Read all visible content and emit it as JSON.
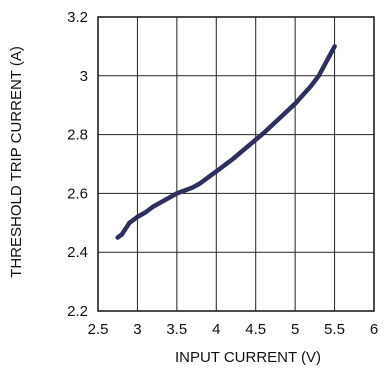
{
  "chart_data": {
    "type": "line",
    "title": "",
    "xlabel": "INPUT CURRENT (V)",
    "ylabel": "THRESHOLD TRIP CURRENT (A)",
    "xlim": [
      2.5,
      6.0
    ],
    "ylim": [
      2.2,
      3.2
    ],
    "x_ticks": [
      2.5,
      3,
      3.5,
      4,
      4.5,
      5,
      5.5,
      6
    ],
    "x_tick_labels": [
      "2.5",
      "3",
      "3.5",
      "4",
      "4.5",
      "5",
      "5.5",
      "6"
    ],
    "y_ticks": [
      2.2,
      2.4,
      2.6,
      2.8,
      3.0,
      3.2
    ],
    "y_tick_labels": [
      "2.2",
      "2.4",
      "2.6",
      "2.8",
      "3",
      "3.2"
    ],
    "grid": true,
    "legend": "none",
    "series": [
      {
        "color": "#2f2f5f",
        "x": [
          2.75,
          2.8,
          2.9,
          3.0,
          3.1,
          3.2,
          3.3,
          3.4,
          3.5,
          3.6,
          3.7,
          3.8,
          3.9,
          4.0,
          4.2,
          4.4,
          4.6,
          4.8,
          5.0,
          5.1,
          5.2,
          5.3,
          5.4,
          5.5
        ],
        "y": [
          2.45,
          2.46,
          2.5,
          2.52,
          2.535,
          2.555,
          2.57,
          2.585,
          2.6,
          2.61,
          2.62,
          2.635,
          2.655,
          2.675,
          2.715,
          2.76,
          2.805,
          2.855,
          2.905,
          2.935,
          2.965,
          3.0,
          3.05,
          3.1
        ]
      }
    ]
  }
}
